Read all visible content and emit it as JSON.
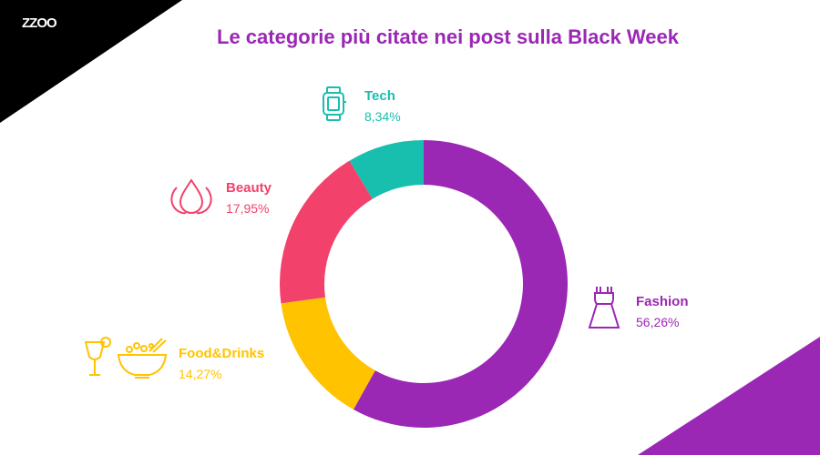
{
  "brand": {
    "logo_text": "ZZOO",
    "accent_purple": "#9b27b5",
    "corner_black": "#000000"
  },
  "title": "Le categorie più citate nei post sulla Black Week",
  "chart_data": {
    "type": "pie",
    "variant": "donut",
    "title": "Le categorie più citate nei post sulla Black Week",
    "categories": [
      "Fashion",
      "Food&Drinks",
      "Beauty",
      "Tech"
    ],
    "values": [
      56.26,
      14.27,
      17.95,
      8.34
    ],
    "value_labels": [
      "56,26%",
      "14,27%",
      "17,95%",
      "8,34%"
    ],
    "colors": [
      "#9b27b5",
      "#ffc300",
      "#f2416b",
      "#19bfae"
    ],
    "icons": [
      "dress-icon",
      "food-drinks-icon",
      "beauty-drop-icon",
      "smartwatch-icon"
    ],
    "start": "top",
    "direction": "clockwise"
  }
}
